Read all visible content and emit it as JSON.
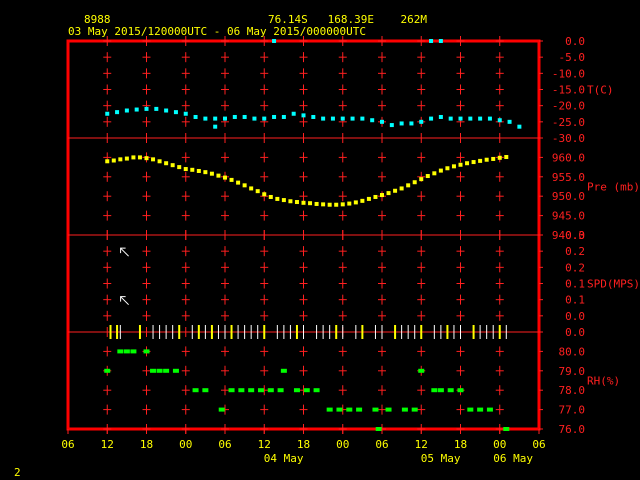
{
  "header": {
    "station_id": "8988",
    "location": "76.14S   168.39E    262M",
    "period": "03 May 2015/120000UTC - 06 May 2015/000000UTC"
  },
  "footer": {
    "page_number": "2"
  },
  "colors": {
    "background": "#000000",
    "frame": "#ff0000",
    "grid": "#ff2020",
    "axis_text": "#ff2020",
    "header_text": "#ffff00",
    "temperature": "#00ffff",
    "pressure": "#ffff00",
    "wind": "#ffff00",
    "rh": "#00ff00"
  },
  "chart_data": {
    "type": "scatter",
    "x_axis": {
      "range_hours": [
        -6,
        66
      ],
      "tick_hours": [
        -6,
        0,
        6,
        12,
        18,
        24,
        30,
        36,
        42,
        48,
        54,
        60,
        66
      ],
      "tick_labels": [
        "06",
        "12",
        "18",
        "00",
        "06",
        "12",
        "18",
        "00",
        "06",
        "12",
        "18",
        "00",
        "06"
      ],
      "date_labels": [
        {
          "hour": 30,
          "text": "04 May"
        },
        {
          "hour": 54,
          "text": "05 May"
        },
        {
          "hour": 78,
          "text": "06 May"
        }
      ]
    },
    "panels": [
      {
        "name": "temperature",
        "label": "T(C)",
        "range": [
          -30,
          0
        ],
        "ticks": [
          "0.0",
          "-5.0",
          "-10.0",
          "-15.0",
          "-20.0",
          "-25.0",
          "-30.0"
        ],
        "tick_values": [
          0,
          -5,
          -10,
          -15,
          -20,
          -25,
          -30
        ],
        "series": [
          {
            "points": [
              [
                0,
                -22.5
              ],
              [
                1.5,
                -22
              ],
              [
                3,
                -21.5
              ],
              [
                4.5,
                -21.2
              ],
              [
                6,
                -21
              ],
              [
                7.5,
                -21
              ],
              [
                9,
                -21.5
              ],
              [
                10.5,
                -22
              ],
              [
                12,
                -22.5
              ],
              [
                13.5,
                -23.5
              ],
              [
                15,
                -24
              ],
              [
                16.5,
                -24
              ],
              [
                18,
                -24
              ],
              [
                19.5,
                -23.5
              ],
              [
                21,
                -23.5
              ],
              [
                22.5,
                -24
              ],
              [
                24,
                -24
              ],
              [
                25.5,
                -23.5
              ],
              [
                27,
                -23.5
              ],
              [
                28.5,
                -22.5
              ],
              [
                30,
                -23
              ],
              [
                31.5,
                -23.5
              ],
              [
                33,
                -24
              ],
              [
                34.5,
                -24
              ],
              [
                36,
                -24
              ],
              [
                37.5,
                -24
              ],
              [
                39,
                -24
              ],
              [
                40.5,
                -24.5
              ],
              [
                42,
                -25
              ],
              [
                43.5,
                -26
              ],
              [
                45,
                -25.5
              ],
              [
                46.5,
                -25.5
              ],
              [
                48,
                -25
              ],
              [
                49.5,
                -24
              ],
              [
                51,
                -23.5
              ],
              [
                52.5,
                -24
              ],
              [
                54,
                -24
              ],
              [
                55.5,
                -24
              ],
              [
                57,
                -24
              ],
              [
                58.5,
                -24
              ],
              [
                60,
                -24.5
              ],
              [
                61.5,
                -25
              ],
              [
                63,
                -26.5
              ],
              [
                16.5,
                -26.5
              ],
              [
                25.5,
                0
              ],
              [
                49.5,
                0
              ],
              [
                51,
                0
              ]
            ]
          }
        ]
      },
      {
        "name": "pressure",
        "label": "Pre (mb)",
        "range": [
          940,
          965
        ],
        "ticks": [
          "960.0",
          "955.0",
          "950.0",
          "945.0",
          "940.0"
        ],
        "tick_values": [
          960,
          955,
          950,
          945,
          940
        ],
        "series": [
          {
            "points": [
              [
                0,
                959
              ],
              [
                1,
                959.2
              ],
              [
                2,
                959.5
              ],
              [
                3,
                959.7
              ],
              [
                4,
                960
              ],
              [
                5,
                960
              ],
              [
                6,
                959.8
              ],
              [
                7,
                959.5
              ],
              [
                8,
                959
              ],
              [
                9,
                958.5
              ],
              [
                10,
                958
              ],
              [
                11,
                957.5
              ],
              [
                12,
                957
              ],
              [
                13,
                956.8
              ],
              [
                14,
                956.5
              ],
              [
                15,
                956.2
              ],
              [
                16,
                955.8
              ],
              [
                17,
                955.3
              ],
              [
                18,
                954.8
              ],
              [
                19,
                954.2
              ],
              [
                20,
                953.5
              ],
              [
                21,
                952.8
              ],
              [
                22,
                952
              ],
              [
                23,
                951.3
              ],
              [
                24,
                950.5
              ],
              [
                25,
                949.8
              ],
              [
                26,
                949.3
              ],
              [
                27,
                949
              ],
              [
                28,
                948.7
              ],
              [
                29,
                948.5
              ],
              [
                30,
                948.3
              ],
              [
                31,
                948.2
              ],
              [
                32,
                948
              ],
              [
                33,
                947.9
              ],
              [
                34,
                947.8
              ],
              [
                35,
                947.8
              ],
              [
                36,
                947.9
              ],
              [
                37,
                948.1
              ],
              [
                38,
                948.4
              ],
              [
                39,
                948.8
              ],
              [
                40,
                949.3
              ],
              [
                41,
                949.8
              ],
              [
                42,
                950.3
              ],
              [
                43,
                950.8
              ],
              [
                44,
                951.4
              ],
              [
                45,
                952
              ],
              [
                46,
                952.8
              ],
              [
                47,
                953.6
              ],
              [
                48,
                954.4
              ],
              [
                49,
                955.2
              ],
              [
                50,
                955.9
              ],
              [
                51,
                956.6
              ],
              [
                52,
                957.2
              ],
              [
                53,
                957.7
              ],
              [
                54,
                958.1
              ],
              [
                55,
                958.5
              ],
              [
                56,
                958.8
              ],
              [
                57,
                959.1
              ],
              [
                58,
                959.4
              ],
              [
                59,
                959.6
              ],
              [
                60,
                959.9
              ],
              [
                61,
                960.1
              ]
            ]
          }
        ]
      },
      {
        "name": "wind_speed",
        "label": "SPD(MPS)",
        "range": [
          0,
          0.3
        ],
        "ticks": [
          "0.3",
          "0.2",
          "0.2",
          "0.1",
          "0.1",
          "0.0",
          "0.0"
        ],
        "tick_values": [
          0.3,
          0.25,
          0.2,
          0.15,
          0.1,
          0.05,
          0
        ],
        "series": [
          {
            "calm_hours": [
              0.5,
              1.5,
              2,
              5,
              7,
              8,
              9,
              10,
              11,
              13,
              14,
              15,
              16,
              17,
              18,
              19,
              20,
              21,
              22,
              23,
              24,
              26,
              27,
              28,
              29,
              30,
              32,
              33,
              34,
              35,
              36,
              38,
              39,
              41,
              42,
              44,
              45,
              46,
              47,
              48,
              50,
              51,
              52,
              53,
              54,
              56,
              57,
              58,
              59,
              60,
              61
            ],
            "long_bars": [
              0.5,
              1.5,
              5,
              11,
              14,
              16,
              19,
              24,
              29,
              35,
              39,
              44,
              48,
              52,
              56,
              60
            ],
            "arrows": [
              {
                "hour": 2.5,
                "value": 0.25
              },
              {
                "hour": 2.5,
                "value": 0.1
              }
            ]
          }
        ]
      },
      {
        "name": "relative_humidity",
        "label": "RH(%)",
        "range": [
          76,
          81
        ],
        "ticks": [
          "80.0",
          "79.0",
          "78.0",
          "77.0",
          "76.0"
        ],
        "tick_values": [
          80,
          79,
          78,
          77,
          76
        ],
        "series": [
          {
            "points": [
              [
                0,
                79
              ],
              [
                2,
                80
              ],
              [
                3,
                80
              ],
              [
                4,
                80
              ],
              [
                6,
                80
              ],
              [
                7,
                79
              ],
              [
                8,
                79
              ],
              [
                9,
                79
              ],
              [
                10.5,
                79
              ],
              [
                13.5,
                78
              ],
              [
                15,
                78
              ],
              [
                17.5,
                77
              ],
              [
                19,
                78
              ],
              [
                20.5,
                78
              ],
              [
                22,
                78
              ],
              [
                23.5,
                78
              ],
              [
                25,
                78
              ],
              [
                26.5,
                78
              ],
              [
                27,
                79
              ],
              [
                29,
                78
              ],
              [
                30.5,
                78
              ],
              [
                32,
                78
              ],
              [
                34,
                77
              ],
              [
                35.5,
                77
              ],
              [
                37,
                77
              ],
              [
                38.5,
                77
              ],
              [
                41,
                77
              ],
              [
                41.5,
                76
              ],
              [
                43,
                77
              ],
              [
                45.5,
                77
              ],
              [
                47,
                77
              ],
              [
                48,
                79
              ],
              [
                50,
                78
              ],
              [
                51,
                78
              ],
              [
                52.5,
                78
              ],
              [
                54,
                78
              ],
              [
                55.5,
                77
              ],
              [
                57,
                77
              ],
              [
                58.5,
                77
              ],
              [
                61,
                76
              ]
            ]
          }
        ]
      }
    ]
  }
}
